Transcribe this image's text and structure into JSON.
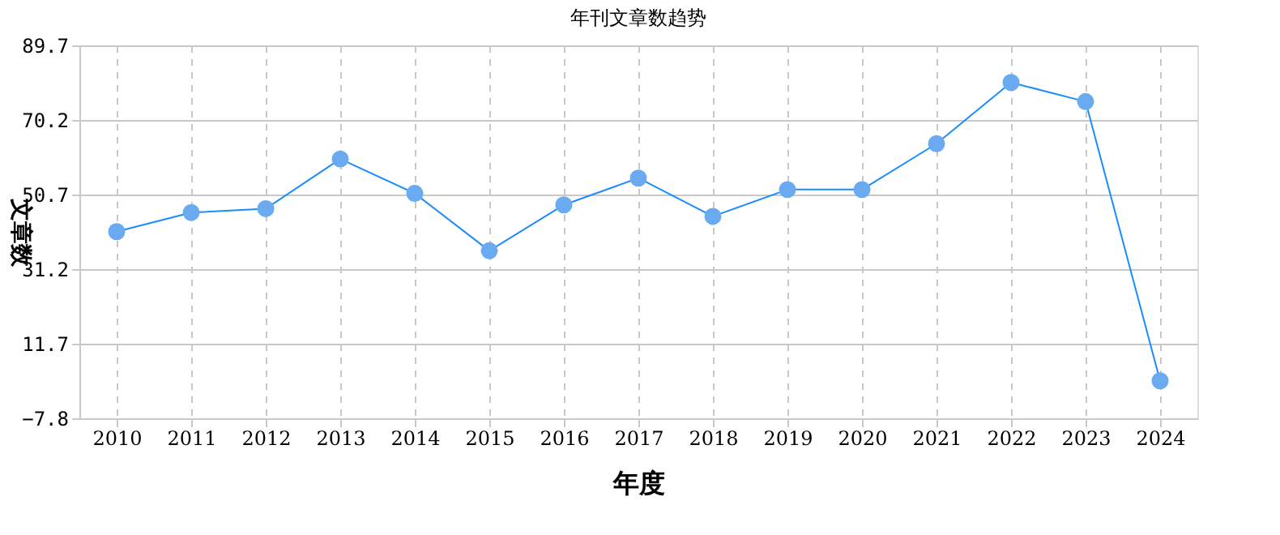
{
  "chart_data": {
    "type": "line",
    "title": "年刊文章数趋势",
    "xlabel": "年度",
    "ylabel": "文章数",
    "categories": [
      "2010",
      "2011",
      "2012",
      "2013",
      "2014",
      "2015",
      "2016",
      "2017",
      "2018",
      "2019",
      "2020",
      "2021",
      "2022",
      "2023",
      "2024"
    ],
    "series": [
      {
        "color": "#1a8cff",
        "values": [
          41,
          46,
          47,
          60,
          51,
          36,
          48,
          55,
          45,
          52,
          52,
          64,
          80,
          75,
          2
        ]
      }
    ],
    "ylim": [
      -7.8,
      89.7
    ],
    "yticks": [
      -7.8,
      11.7,
      31.2,
      50.7,
      70.2,
      89.7
    ],
    "grid": true,
    "marker": "circle",
    "line_style": "solid",
    "legend": false
  }
}
